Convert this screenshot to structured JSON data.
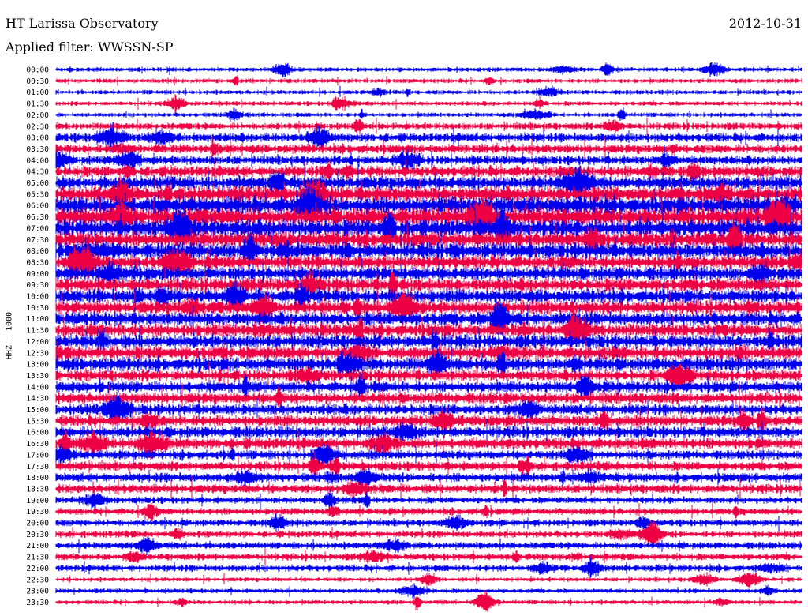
{
  "header": {
    "title": "HT Larissa Observatory",
    "date": "2012-10-31",
    "filter": "Applied filter: WWSSN-SP"
  },
  "colors": {
    "blue": "#0000ee",
    "red": "#ee0044"
  },
  "chart_data": {
    "type": "line",
    "title": "HT Larissa Observatory",
    "ylabel": "HHZ - 1000",
    "xlabel": "",
    "trace_colors": [
      "#0000ee",
      "#ee0044"
    ],
    "y_tick_labels": [
      "00:00",
      "00:30",
      "01:00",
      "01:30",
      "02:00",
      "02:30",
      "03:00",
      "03:30",
      "04:00",
      "04:30",
      "05:00",
      "05:30",
      "06:00",
      "06:30",
      "07:00",
      "07:30",
      "08:00",
      "08:30",
      "09:00",
      "09:30",
      "10:00",
      "10:30",
      "11:00",
      "11:30",
      "12:00",
      "12:30",
      "13:00",
      "13:30",
      "14:00",
      "14:30",
      "15:00",
      "15:30",
      "16:00",
      "16:30",
      "17:00",
      "17:30",
      "18:00",
      "18:30",
      "19:00",
      "19:30",
      "20:00",
      "20:30",
      "21:00",
      "21:30",
      "22:00",
      "22:30",
      "23:00",
      "23:30"
    ],
    "noise_level": [
      1,
      1,
      1,
      1,
      1,
      2,
      3,
      3,
      3,
      4,
      5,
      6,
      7,
      7,
      7,
      6,
      6,
      5,
      5,
      5,
      5,
      5,
      5,
      5,
      5,
      5,
      5,
      4,
      4,
      4,
      4,
      4,
      4,
      4,
      3,
      3,
      3,
      3,
      2,
      2,
      2,
      2,
      2,
      2,
      2,
      1,
      1,
      1
    ]
  }
}
